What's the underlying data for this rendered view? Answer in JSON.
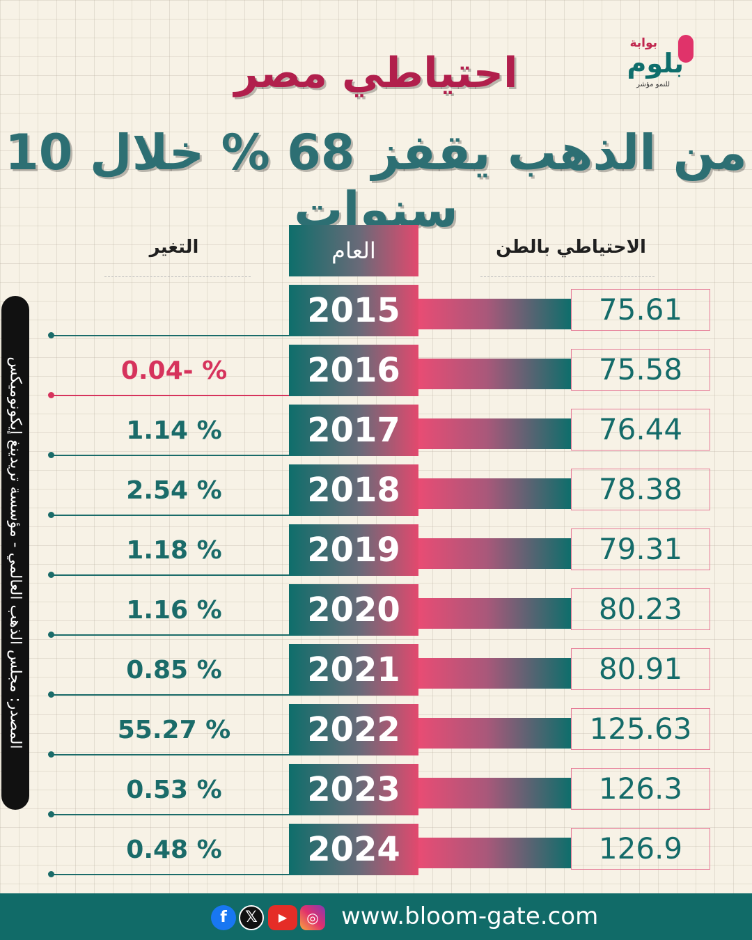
{
  "logo": {
    "pre": "بوابة",
    "main": "بلوم",
    "tag": "للنمو مؤشر"
  },
  "title": {
    "line1": "احتياطي مصر",
    "line2": "من الذهب يقفز 68 % خلال 10 سنوات"
  },
  "headers": {
    "reserve": "الاحتياطي بالطن",
    "year": "العام",
    "change": "التغير"
  },
  "rows": [
    {
      "year": "2015",
      "value": "75.61",
      "change": ""
    },
    {
      "year": "2016",
      "value": "75.58",
      "change": "% -0.04"
    },
    {
      "year": "2017",
      "value": "76.44",
      "change": "% 1.14"
    },
    {
      "year": "2018",
      "value": "78.38",
      "change": "% 2.54"
    },
    {
      "year": "2019",
      "value": "79.31",
      "change": "% 1.18"
    },
    {
      "year": "2020",
      "value": "80.23",
      "change": "% 1.16"
    },
    {
      "year": "2021",
      "value": "80.91",
      "change": "% 0.85"
    },
    {
      "year": "2022",
      "value": "125.63",
      "change": "% 55.27"
    },
    {
      "year": "2023",
      "value": "126.3",
      "change": "% 0.53"
    },
    {
      "year": "2024",
      "value": "126.9",
      "change": "% 0.48"
    }
  ],
  "source": "المصدر: مجلس الذهب العالمي - مؤسسة تريدينغ إيكونوميكس",
  "footer": {
    "url": "www.bloom-gate.com"
  },
  "social_icons": [
    "facebook-icon",
    "x-icon",
    "youtube-icon",
    "instagram-icon"
  ],
  "colors": {
    "teal": "#0e6e6b",
    "pink": "#e2496e",
    "negative": "#d6335c",
    "title_red": "#b11f4c"
  }
}
